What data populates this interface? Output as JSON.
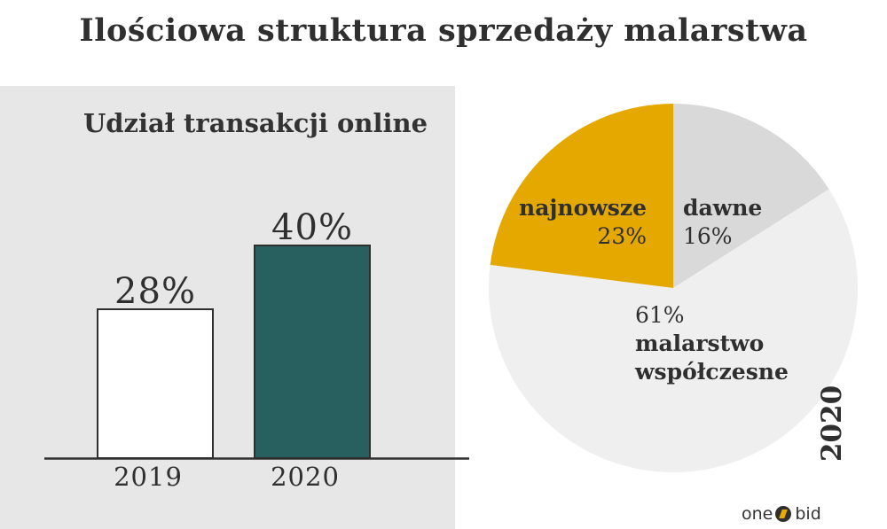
{
  "title": "Ilościowa struktura sprzedaży malarstwa",
  "chart_data": [
    {
      "type": "bar",
      "title": "Udział transakcji online",
      "categories": [
        "2019",
        "2020"
      ],
      "values": [
        28,
        40
      ],
      "value_labels": [
        "28%",
        "40%"
      ],
      "unit": "%",
      "ylim": [
        0,
        45
      ],
      "colors": [
        "#ffffff",
        "#285f5f"
      ],
      "grid": false,
      "legend": "none"
    },
    {
      "type": "pie",
      "title": "",
      "side_label": "2020",
      "slices": [
        {
          "name": "dawne",
          "value": 16,
          "label": "16%",
          "color": "#d9d9d9"
        },
        {
          "name": "malarstwo współczesne",
          "value": 61,
          "label": "61%",
          "color": "#efefef"
        },
        {
          "name": "najnowsze",
          "value": 23,
          "label": "23%",
          "color": "#e4a800"
        }
      ],
      "legend": "none"
    }
  ],
  "branding": {
    "logo_left": "one",
    "logo_right": "bid"
  },
  "colors": {
    "panel_background": "#e7e7e7",
    "text": "#2f2f2f",
    "accent_gold": "#e4a800",
    "accent_teal": "#285f5f"
  }
}
